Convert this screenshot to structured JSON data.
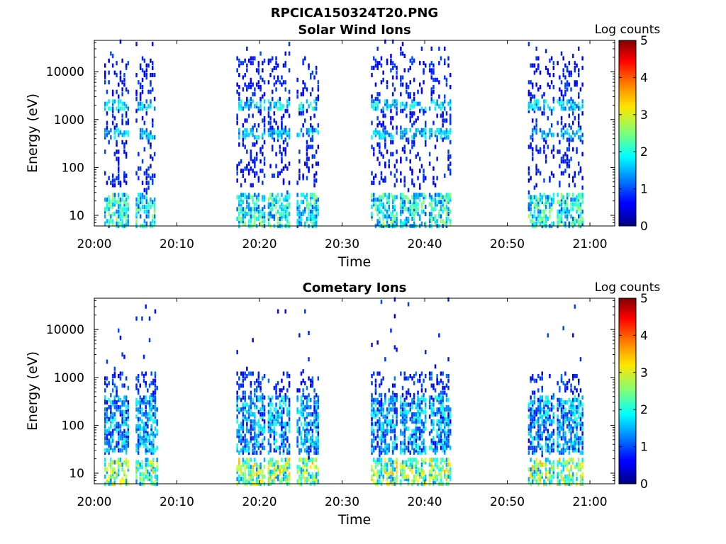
{
  "figure": {
    "filename": "RPCICA150324T20.PNG"
  },
  "chart_data": [
    {
      "type": "heatmap",
      "title": "Solar Wind Ions",
      "xlabel": "Time",
      "ylabel": "Energy (eV)",
      "x_tick_labels": [
        "20:00",
        "20:10",
        "20:20",
        "20:30",
        "20:40",
        "20:50",
        "21:00"
      ],
      "x_ticks_min": [
        0,
        10,
        20,
        30,
        40,
        50,
        60
      ],
      "xlim_min": [
        0,
        63
      ],
      "y_tick_labels": [
        "10",
        "100",
        "1000",
        "10000"
      ],
      "y_ticks": [
        10,
        100,
        1000,
        10000
      ],
      "ylim": [
        6,
        45000
      ],
      "y_scale": "log",
      "colorbar": {
        "label": "Log counts",
        "min": 0,
        "max": 5,
        "ticks": [
          "0",
          "1",
          "2",
          "3",
          "4",
          "5"
        ],
        "colormap": "jet"
      },
      "bursts": [
        {
          "t0": 1.2,
          "t1": 4.0,
          "peak_energy_eV": 2000
        },
        {
          "t0": 5.0,
          "t1": 7.2,
          "peak_energy_eV": 2000
        },
        {
          "t0": 17.2,
          "t1": 20.5,
          "peak_energy_eV": 2000
        },
        {
          "t0": 21.0,
          "t1": 23.5,
          "peak_energy_eV": 2000
        },
        {
          "t0": 24.5,
          "t1": 27.0,
          "peak_energy_eV": 2000
        },
        {
          "t0": 33.5,
          "t1": 36.5,
          "peak_energy_eV": 2000
        },
        {
          "t0": 37.0,
          "t1": 40.0,
          "peak_energy_eV": 2000
        },
        {
          "t0": 40.5,
          "t1": 43.0,
          "peak_energy_eV": 2000
        },
        {
          "t0": 52.5,
          "t1": 55.5,
          "peak_energy_eV": 2000
        },
        {
          "t0": 56.0,
          "t1": 59.0,
          "peak_energy_eV": 2000
        }
      ]
    },
    {
      "type": "heatmap",
      "title": "Cometary Ions",
      "xlabel": "Time",
      "ylabel": "Energy (eV)",
      "x_tick_labels": [
        "20:00",
        "20:10",
        "20:20",
        "20:30",
        "20:40",
        "20:50",
        "21:00"
      ],
      "x_ticks_min": [
        0,
        10,
        20,
        30,
        40,
        50,
        60
      ],
      "xlim_min": [
        0,
        63
      ],
      "y_tick_labels": [
        "10",
        "100",
        "1000",
        "10000"
      ],
      "y_ticks": [
        10,
        100,
        1000,
        10000
      ],
      "ylim": [
        6,
        45000
      ],
      "y_scale": "log",
      "colorbar": {
        "label": "Log counts",
        "min": 0,
        "max": 5,
        "ticks": [
          "0",
          "1",
          "2",
          "3",
          "4",
          "5"
        ],
        "colormap": "jet"
      },
      "bursts": [
        {
          "t0": 1.2,
          "t1": 4.0,
          "peak_energy_eV": 100
        },
        {
          "t0": 5.0,
          "t1": 7.5,
          "peak_energy_eV": 100
        },
        {
          "t0": 17.2,
          "t1": 20.5,
          "peak_energy_eV": 100
        },
        {
          "t0": 21.0,
          "t1": 23.5,
          "peak_energy_eV": 100
        },
        {
          "t0": 24.5,
          "t1": 27.0,
          "peak_energy_eV": 100
        },
        {
          "t0": 33.5,
          "t1": 36.5,
          "peak_energy_eV": 100
        },
        {
          "t0": 37.0,
          "t1": 40.0,
          "peak_energy_eV": 100
        },
        {
          "t0": 40.5,
          "t1": 43.0,
          "peak_energy_eV": 100
        },
        {
          "t0": 52.5,
          "t1": 55.5,
          "peak_energy_eV": 100
        },
        {
          "t0": 56.0,
          "t1": 59.0,
          "peak_energy_eV": 100
        }
      ]
    }
  ]
}
